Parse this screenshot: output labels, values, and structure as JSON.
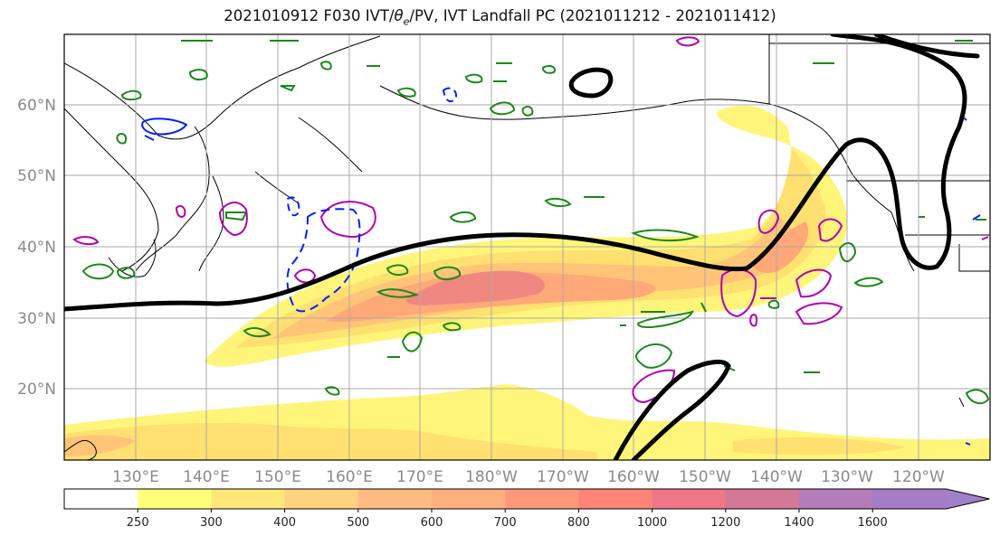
{
  "title": {
    "prefix": "2021010912 F030 IVT/",
    "theta": "θ",
    "sub_e": "e",
    "suffix": "/PV, IVT Landfall PC (2021011212 - 2021011412)"
  },
  "map": {
    "lat_labels": [
      "60°N",
      "50°N",
      "40°N",
      "30°N",
      "20°N"
    ],
    "lon_labels": [
      "130°E",
      "140°E",
      "150°E",
      "160°E",
      "170°E",
      "180°W",
      "170°W",
      "160°W",
      "150°W",
      "140°W",
      "130°W",
      "120°W"
    ]
  },
  "colorbar": {
    "levels": [
      "250",
      "300",
      "400",
      "500",
      "600",
      "700",
      "800",
      "1000",
      "1200",
      "1400",
      "1600"
    ],
    "colors": [
      "#ffffff",
      "#ffff78",
      "#ffe878",
      "#ffd280",
      "#ffbc80",
      "#ffb080",
      "#ff9878",
      "#ff8478",
      "#ee7888",
      "#d47898",
      "#b47cb8",
      "#a47cc8",
      "#a080c8"
    ]
  }
}
